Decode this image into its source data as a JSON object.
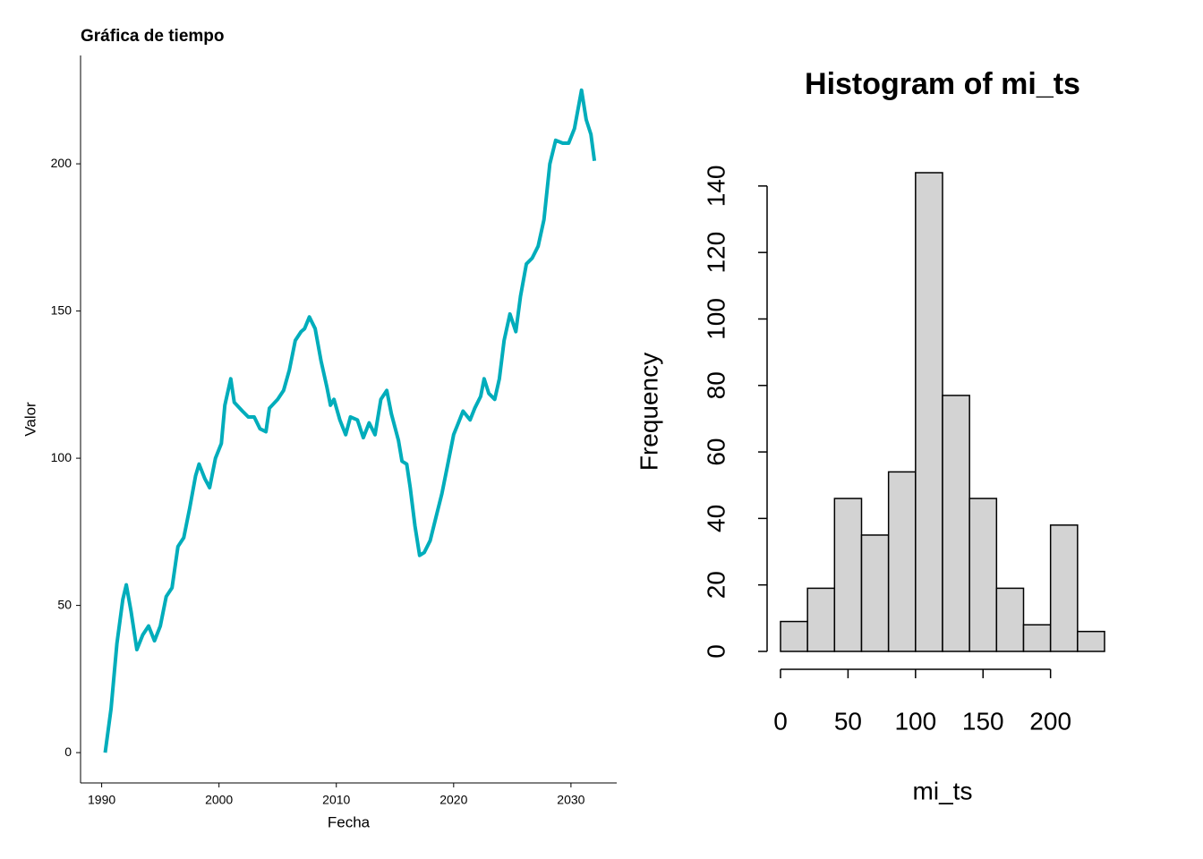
{
  "chart_data": [
    {
      "type": "line",
      "title": "Gráfica de tiempo",
      "x_label": "Fecha",
      "y_label": "Valor",
      "color": "#00adbb",
      "x": [
        1990.3,
        1990.8,
        1991.3,
        1991.8,
        1992.1,
        1992.5,
        1993,
        1993.5,
        1994,
        1994.5,
        1995,
        1995.5,
        1996,
        1996.5,
        1997,
        1997.5,
        1998,
        1998.3,
        1998.8,
        1999.2,
        1999.7,
        2000.2,
        2000.5,
        2001,
        2001.3,
        2002,
        2002.5,
        2003,
        2003.5,
        2004,
        2004.3,
        2005,
        2005.5,
        2006,
        2006.5,
        2007,
        2007.3,
        2007.7,
        2008.2,
        2008.7,
        2009.2,
        2009.5,
        2009.8,
        2010.3,
        2010.8,
        2011.2,
        2011.8,
        2012.3,
        2012.8,
        2013.3,
        2013.8,
        2014.3,
        2014.7,
        2015.3,
        2015.6,
        2016,
        2016.3,
        2016.7,
        2017.1,
        2017.5,
        2018,
        2018.5,
        2019,
        2019.5,
        2020,
        2020.4,
        2020.8,
        2021.4,
        2021.8,
        2022.3,
        2022.6,
        2023,
        2023.5,
        2023.9,
        2024.3,
        2024.8,
        2025.3,
        2025.7,
        2026.2,
        2026.7,
        2027.2,
        2027.7,
        2028.2,
        2028.7,
        2029.3,
        2029.8,
        2030.3,
        2030.9,
        2031.3,
        2031.7,
        2032
      ],
      "values": [
        0,
        15,
        37,
        52,
        57,
        48,
        35,
        40,
        43,
        38,
        43,
        53,
        56,
        70,
        73,
        83,
        94,
        98,
        93,
        90,
        100,
        105,
        118,
        127,
        119,
        116,
        114,
        114,
        110,
        109,
        117,
        120,
        123,
        130,
        140,
        143,
        144,
        148,
        144,
        133,
        124,
        118,
        120,
        113,
        108,
        114,
        113,
        107,
        112,
        108,
        120,
        123,
        115,
        106,
        99,
        98,
        90,
        77,
        67,
        68,
        72,
        80,
        88,
        98,
        108,
        112,
        116,
        113,
        117,
        121,
        127,
        122,
        120,
        127,
        140,
        149,
        143,
        155,
        166,
        168,
        172,
        181,
        200,
        208,
        207,
        207,
        212,
        225,
        215,
        210,
        201
      ],
      "xlim": [
        1988.2,
        2033.9
      ],
      "ylim": [
        -10.3,
        236.8
      ],
      "xticks": [
        1990,
        2000,
        2010,
        2020,
        2030
      ],
      "yticks": [
        0,
        50,
        100,
        150,
        200
      ]
    },
    {
      "type": "histogram",
      "title": "Histogram of mi_ts",
      "x_label": "mi_ts",
      "y_label": "Frequency",
      "color": "#d3d3d3",
      "bins": [
        0,
        20,
        40,
        60,
        80,
        100,
        120,
        140,
        160,
        180,
        200,
        220,
        240
      ],
      "values": [
        9,
        19,
        46,
        35,
        54,
        144,
        77,
        46,
        19,
        8,
        38,
        6
      ],
      "xlim": [
        0,
        240
      ],
      "ylim": [
        0,
        144
      ],
      "xticks": [
        0,
        50,
        100,
        150,
        200
      ],
      "yticks": [
        0,
        20,
        40,
        60,
        80,
        100,
        120,
        140
      ]
    }
  ]
}
